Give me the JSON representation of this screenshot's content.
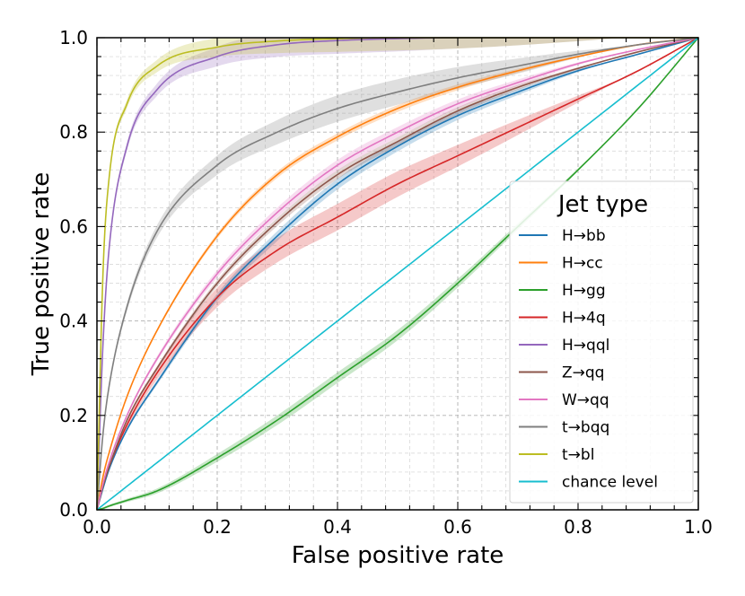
{
  "chart_data": {
    "type": "line",
    "title": "",
    "xlabel": "False positive rate",
    "ylabel": "True positive rate",
    "xlim": [
      0,
      1
    ],
    "ylim": [
      0,
      1
    ],
    "xticks": [
      "0.0",
      "0.2",
      "0.4",
      "0.6",
      "0.8",
      "1.0"
    ],
    "yticks": [
      "0.0",
      "0.2",
      "0.4",
      "0.6",
      "0.8",
      "1.0"
    ],
    "grid": true,
    "legend": {
      "title": "Jet type",
      "placement": "lower-right"
    },
    "x": [
      0,
      0.01,
      0.02,
      0.05,
      0.1,
      0.2,
      0.3,
      0.4,
      0.5,
      0.6,
      0.7,
      0.8,
      0.9,
      1.0
    ],
    "series": [
      {
        "name": "H→bb",
        "color": "#1f77b4",
        "values": [
          0,
          0.045,
          0.085,
          0.17,
          0.27,
          0.45,
          0.58,
          0.69,
          0.77,
          0.835,
          0.885,
          0.93,
          0.965,
          1.0
        ],
        "band": 0.012
      },
      {
        "name": "H→cc",
        "color": "#ff7f0e",
        "values": [
          0,
          0.07,
          0.12,
          0.24,
          0.38,
          0.58,
          0.71,
          0.79,
          0.85,
          0.895,
          0.93,
          0.96,
          0.985,
          1.0
        ],
        "band": 0.008
      },
      {
        "name": "H→gg",
        "color": "#2ca02c",
        "values": [
          0,
          0.003,
          0.008,
          0.02,
          0.04,
          0.11,
          0.19,
          0.28,
          0.37,
          0.48,
          0.6,
          0.72,
          0.85,
          1.0
        ],
        "band": 0.012
      },
      {
        "name": "H→4q",
        "color": "#d62728",
        "values": [
          0,
          0.05,
          0.09,
          0.18,
          0.29,
          0.45,
          0.55,
          0.62,
          0.69,
          0.75,
          0.81,
          0.87,
          0.93,
          1.0
        ],
        "band": 0.03
      },
      {
        "name": "H→qql",
        "color": "#9467bd",
        "values": [
          0,
          0.35,
          0.55,
          0.77,
          0.89,
          0.96,
          0.985,
          0.994,
          0.998,
          1.0,
          1.0,
          1.0,
          1.0,
          1.0
        ],
        "band": 0.03
      },
      {
        "name": "Z→qq",
        "color": "#8c564b",
        "values": [
          0,
          0.05,
          0.09,
          0.19,
          0.3,
          0.48,
          0.61,
          0.71,
          0.78,
          0.845,
          0.895,
          0.935,
          0.97,
          1.0
        ],
        "band": 0.01
      },
      {
        "name": "W→qq",
        "color": "#e377c2",
        "values": [
          0,
          0.055,
          0.1,
          0.2,
          0.32,
          0.5,
          0.63,
          0.73,
          0.8,
          0.86,
          0.905,
          0.945,
          0.975,
          1.0
        ],
        "band": 0.012
      },
      {
        "name": "t→bqq",
        "color": "#7f7f7f",
        "values": [
          0,
          0.16,
          0.26,
          0.43,
          0.59,
          0.73,
          0.8,
          0.85,
          0.885,
          0.915,
          0.94,
          0.965,
          0.985,
          1.0
        ],
        "band": 0.03
      },
      {
        "name": "t→bl",
        "color": "#bcbd22",
        "values": [
          0,
          0.5,
          0.7,
          0.86,
          0.94,
          0.98,
          0.993,
          0.998,
          1.0,
          1.0,
          1.0,
          1.0,
          1.0,
          1.0
        ],
        "band": 0.03
      },
      {
        "name": "chance level",
        "color": "#17becf",
        "values": [
          0,
          0.01,
          0.02,
          0.05,
          0.1,
          0.2,
          0.3,
          0.4,
          0.5,
          0.6,
          0.7,
          0.8,
          0.9,
          1.0
        ],
        "band": 0
      }
    ]
  }
}
